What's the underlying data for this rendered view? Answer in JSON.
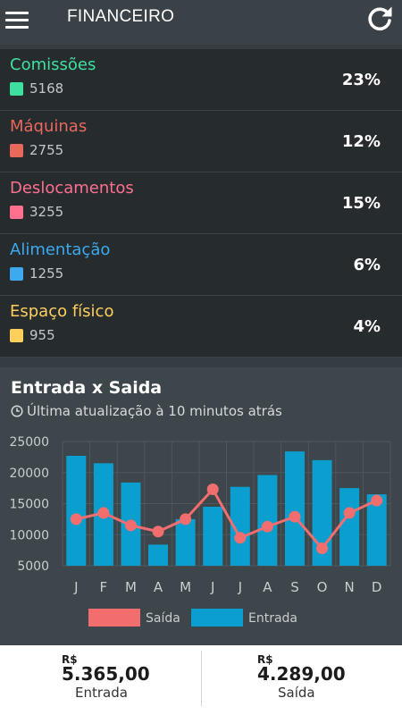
{
  "app": {
    "title": "FINANCEIRO"
  },
  "categories": [
    {
      "name": "Comissões",
      "value": "5168",
      "percent": "23%",
      "color": "#3ee0a0"
    },
    {
      "name": "Máquinas",
      "value": "2755",
      "percent": "12%",
      "color": "#e8685c"
    },
    {
      "name": "Deslocamentos",
      "value": "3255",
      "percent": "15%",
      "color": "#ff6f8e"
    },
    {
      "name": "Alimentação",
      "value": "1255",
      "percent": "6%",
      "color": "#3da9ef"
    },
    {
      "name": "Espaço físico",
      "value": "955",
      "percent": "4%",
      "color": "#ffcf5c"
    }
  ],
  "card": {
    "title": "Entrada x Saida",
    "subtitle": "Última atualização à 10 minutos atrás"
  },
  "chart_data": {
    "type": "bar",
    "categories": [
      "J",
      "F",
      "M",
      "A",
      "M",
      "J",
      "J",
      "A",
      "S",
      "O",
      "N",
      "D"
    ],
    "y_ticks": [
      "25000",
      "20000",
      "15000",
      "10000",
      "5000"
    ],
    "ylim": [
      5000,
      25000
    ],
    "grid": true,
    "legend_position": "bottom",
    "series": [
      {
        "name": "Saída",
        "type": "line",
        "color": "#f26d6d",
        "values": [
          12500,
          13500,
          11500,
          10500,
          12500,
          17300,
          9500,
          11300,
          12900,
          7800,
          13500,
          15500
        ]
      },
      {
        "name": "Entrada",
        "type": "bar",
        "color": "#0b9fcf",
        "values": [
          22700,
          21500,
          18400,
          8400,
          12500,
          14500,
          17700,
          19600,
          23400,
          22000,
          17500,
          16500
        ]
      }
    ]
  },
  "footer": {
    "entrada": {
      "currency": "R$",
      "amount": "5.365,00",
      "label": "Entrada"
    },
    "saida": {
      "currency": "R$",
      "amount": "4.289,00",
      "label": "Saída"
    }
  }
}
